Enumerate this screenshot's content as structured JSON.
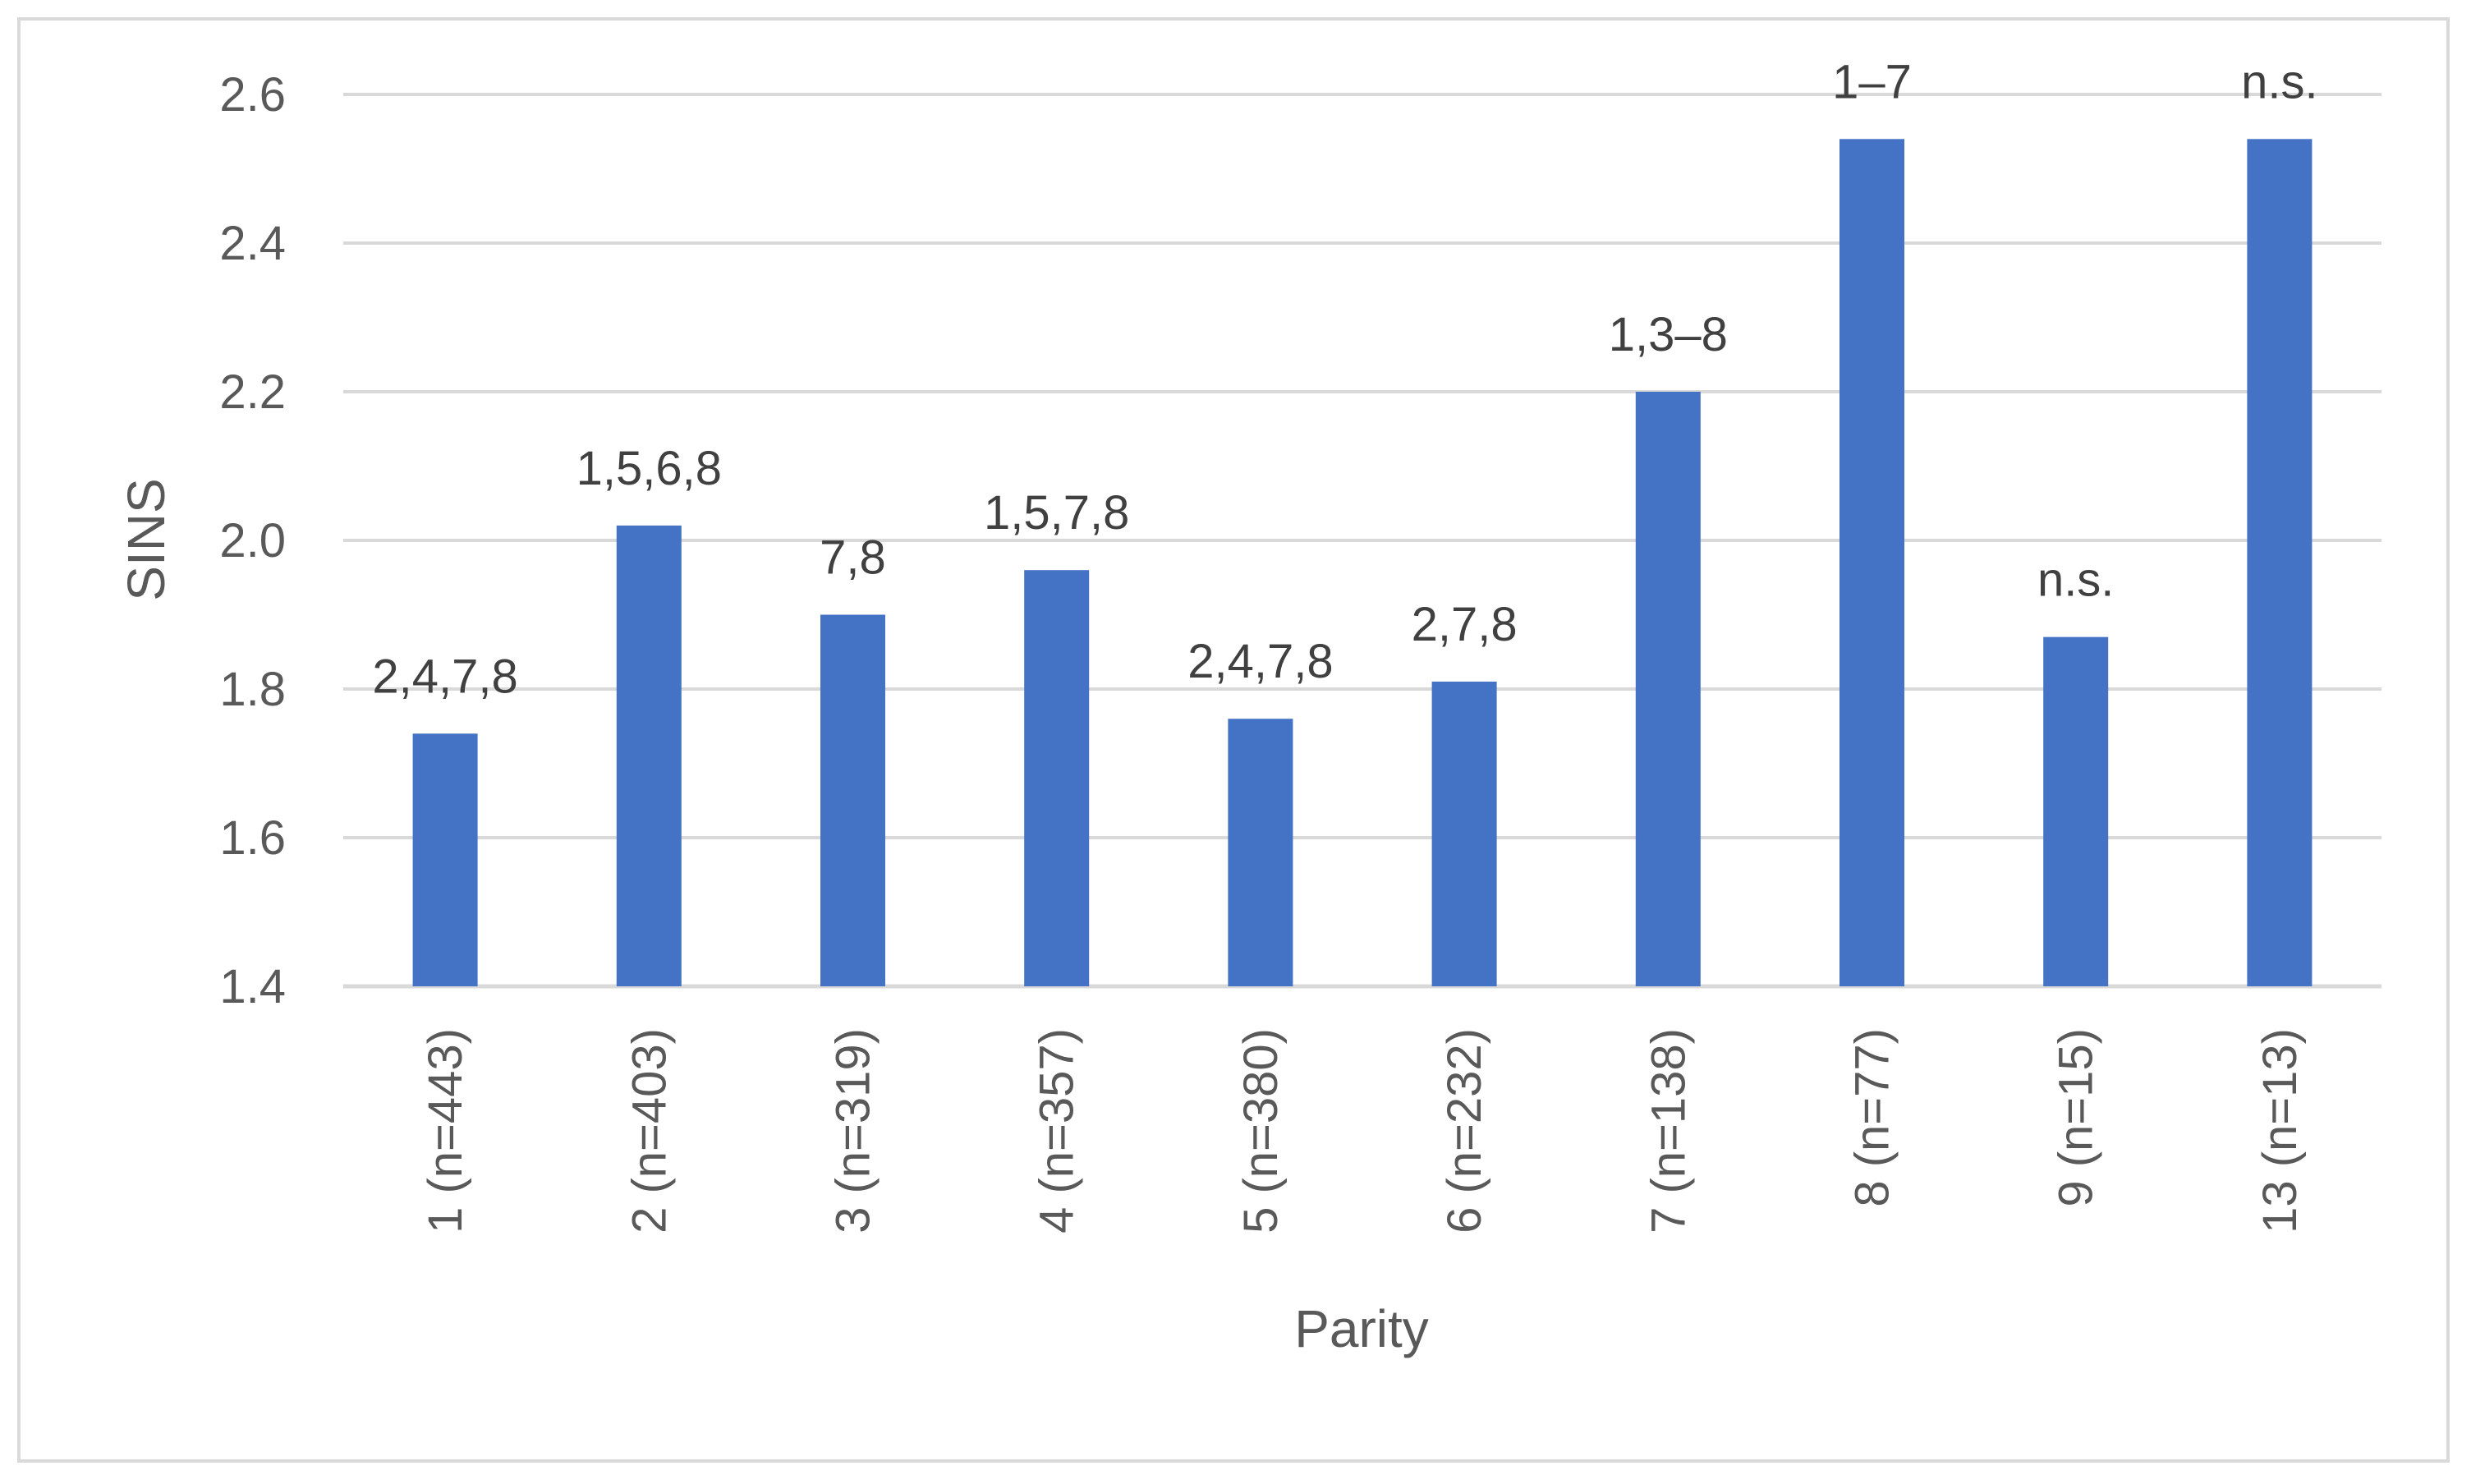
{
  "chart_data": {
    "type": "bar",
    "title": "",
    "xlabel": "Parity",
    "ylabel": "SINS",
    "categories": [
      "1 (n=443)",
      "2 (n=403)",
      "3 (n=319)",
      "4 (n=357)",
      "5 (n=380)",
      "6 (n=232)",
      "7 (n=138)",
      "8 (n=77)",
      "9 (n=15)",
      "13 (n=13)"
    ],
    "values": [
      1.74,
      2.02,
      1.9,
      1.96,
      1.76,
      1.81,
      2.2,
      2.54,
      1.87,
      2.54
    ],
    "data_labels": [
      "2,4,7,8",
      "1,5,6,8",
      "7,8",
      "1,5,7,8",
      "2,4,7,8",
      "2,7,8",
      "1,3–8",
      "1–7",
      "n.s.",
      "n.s."
    ],
    "ylim": [
      1.4,
      2.6
    ],
    "yticks": [
      "1.4",
      "1.6",
      "1.8",
      "2.0",
      "2.2",
      "2.4",
      "2.6"
    ],
    "grid": true,
    "legend": "none",
    "colors": {
      "bar": "#4472c4",
      "grid": "#d9d9d9",
      "axis_text": "#595959",
      "label_text": "#404040"
    }
  }
}
